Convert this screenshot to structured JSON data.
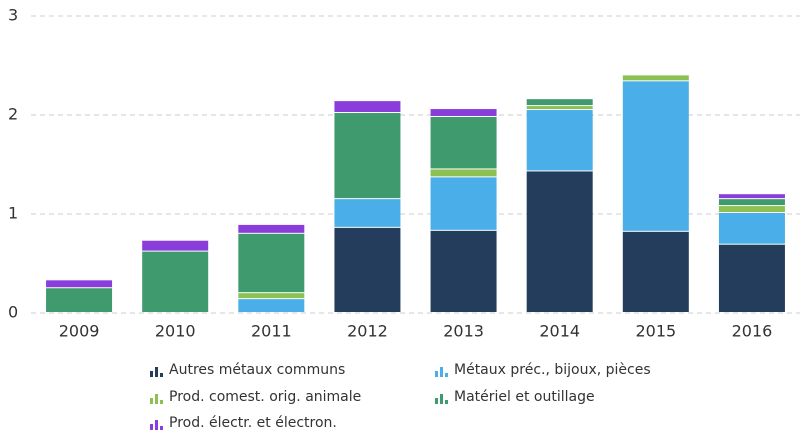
{
  "chart_data": {
    "type": "bar",
    "stacked": true,
    "categories": [
      "2009",
      "2010",
      "2011",
      "2012",
      "2013",
      "2014",
      "2015",
      "2016"
    ],
    "series": [
      {
        "name": "Autres métaux communs",
        "color": "#243d5c",
        "values": [
          0,
          0,
          0,
          0.86,
          0.83,
          1.43,
          0.82,
          0.69
        ]
      },
      {
        "name": "Métaux préc., bijoux, pièces",
        "color": "#4aaee8",
        "values": [
          0,
          0,
          0.14,
          0.29,
          0.54,
          0.62,
          1.52,
          0.32
        ]
      },
      {
        "name": "Prod. comest. orig. animale",
        "color": "#8cc152",
        "values": [
          0,
          0,
          0.06,
          0,
          0.08,
          0.04,
          0.06,
          0.07
        ]
      },
      {
        "name": "Matériel et outillage",
        "color": "#3f9a6e",
        "values": [
          0.25,
          0.62,
          0.6,
          0.87,
          0.53,
          0.07,
          0,
          0.07
        ]
      },
      {
        "name": "Prod. électr. et électron.",
        "color": "#8a3ddb",
        "values": [
          0.08,
          0.11,
          0.09,
          0.12,
          0.08,
          0,
          0,
          0.05
        ]
      }
    ],
    "ylim": [
      0,
      3
    ],
    "yticks": [
      0,
      1,
      2,
      3
    ],
    "grid": true
  }
}
